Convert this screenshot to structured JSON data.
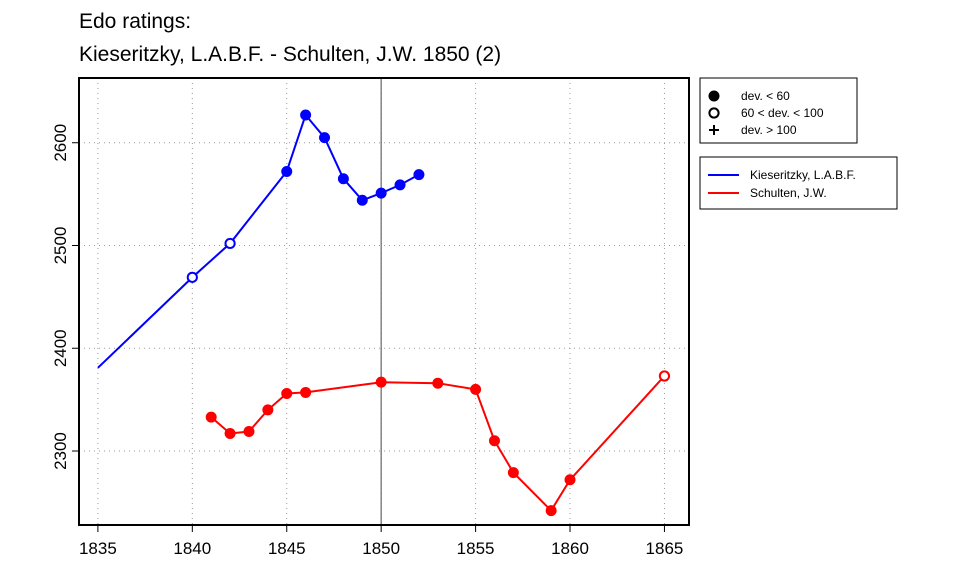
{
  "chart_data": {
    "type": "line",
    "title_lines": [
      "Edo ratings:",
      "Kieseritzky, L.A.B.F. - Schulten, J.W. 1850 (2)"
    ],
    "xlabel": "",
    "ylabel": "",
    "xlim": [
      1834,
      1866.3
    ],
    "ylim": [
      2228,
      2663
    ],
    "x_ticks": [
      1835,
      1840,
      1845,
      1850,
      1855,
      1860,
      1865
    ],
    "y_ticks": [
      2300,
      2400,
      2500,
      2600
    ],
    "grid": true,
    "reference_x": 1850,
    "marker_legend": [
      {
        "symbol": "filled-circle",
        "label": "dev. < 60"
      },
      {
        "symbol": "open-circle",
        "label": "60 < dev. < 100"
      },
      {
        "symbol": "plus",
        "label": "dev. > 100"
      }
    ],
    "series": [
      {
        "name": "Kieseritzky, L.A.B.F.",
        "color": "#0000ff",
        "points": [
          {
            "x": 1835,
            "y": 2381,
            "marker": "none"
          },
          {
            "x": 1840,
            "y": 2469,
            "marker": "open-circle"
          },
          {
            "x": 1842,
            "y": 2502,
            "marker": "open-circle"
          },
          {
            "x": 1845,
            "y": 2572,
            "marker": "filled-circle"
          },
          {
            "x": 1846,
            "y": 2627,
            "marker": "filled-circle"
          },
          {
            "x": 1847,
            "y": 2605,
            "marker": "filled-circle"
          },
          {
            "x": 1848,
            "y": 2565,
            "marker": "filled-circle"
          },
          {
            "x": 1849,
            "y": 2544,
            "marker": "filled-circle"
          },
          {
            "x": 1850,
            "y": 2551,
            "marker": "filled-circle"
          },
          {
            "x": 1851,
            "y": 2559,
            "marker": "filled-circle"
          },
          {
            "x": 1852,
            "y": 2569,
            "marker": "filled-circle"
          }
        ]
      },
      {
        "name": "Schulten, J.W.",
        "color": "#ff0000",
        "points": [
          {
            "x": 1841,
            "y": 2333,
            "marker": "filled-circle"
          },
          {
            "x": 1842,
            "y": 2317,
            "marker": "filled-circle"
          },
          {
            "x": 1843,
            "y": 2319,
            "marker": "filled-circle"
          },
          {
            "x": 1844,
            "y": 2340,
            "marker": "filled-circle"
          },
          {
            "x": 1845,
            "y": 2356,
            "marker": "filled-circle"
          },
          {
            "x": 1846,
            "y": 2357,
            "marker": "filled-circle"
          },
          {
            "x": 1850,
            "y": 2367,
            "marker": "filled-circle"
          },
          {
            "x": 1853,
            "y": 2366,
            "marker": "filled-circle"
          },
          {
            "x": 1855,
            "y": 2360,
            "marker": "filled-circle"
          },
          {
            "x": 1856,
            "y": 2310,
            "marker": "filled-circle"
          },
          {
            "x": 1857,
            "y": 2279,
            "marker": "filled-circle"
          },
          {
            "x": 1859,
            "y": 2242,
            "marker": "filled-circle"
          },
          {
            "x": 1860,
            "y": 2272,
            "marker": "filled-circle"
          },
          {
            "x": 1865,
            "y": 2373,
            "marker": "open-circle"
          }
        ]
      }
    ]
  }
}
